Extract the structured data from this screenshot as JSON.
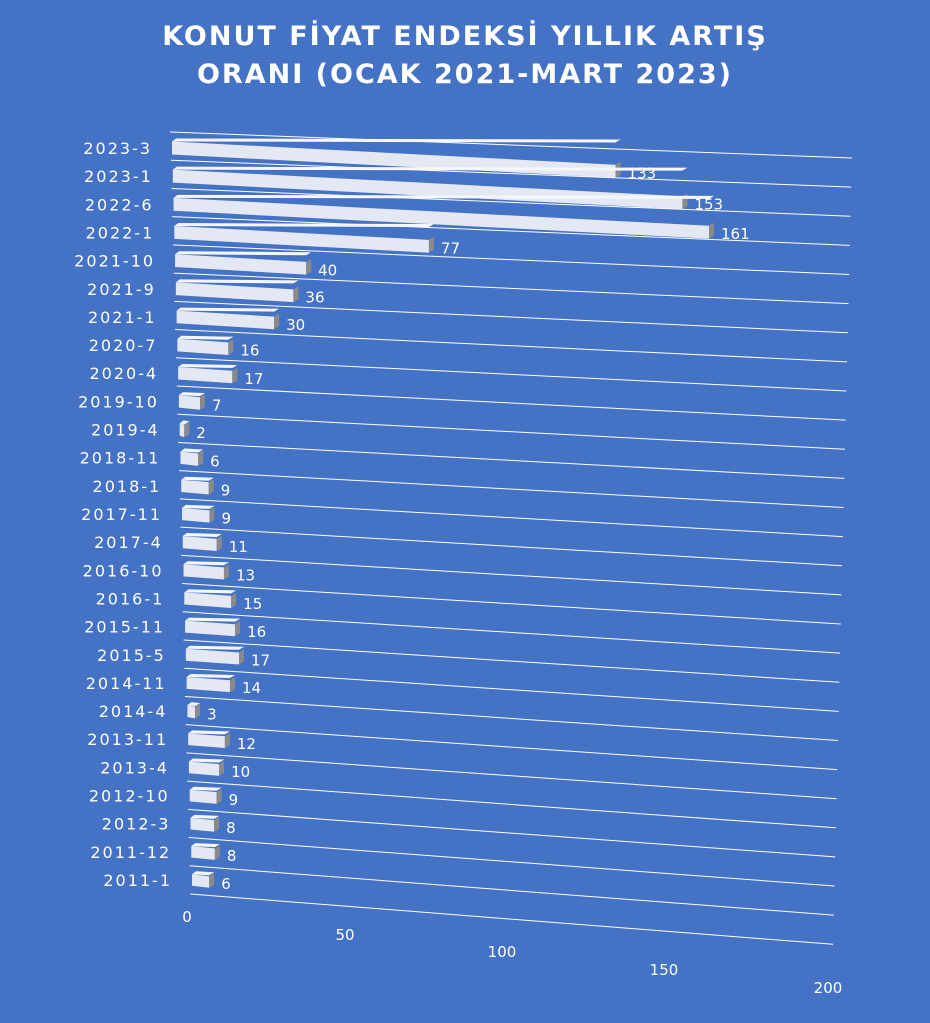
{
  "chart_data": {
    "type": "bar",
    "orientation": "horizontal",
    "title_line1": "KONUT FİYAT ENDEKSİ YILLIK ARTIŞ",
    "title_line2": "ORANI (OCAK 2021-MART 2023)",
    "categories": [
      "2023-3",
      "2023-1",
      "2022-6",
      "2022-1",
      "2021-10",
      "2021-9",
      "2021-1",
      "2020-7",
      "2020-4",
      "2019-10",
      "2019-4",
      "2018-11",
      "2018-1",
      "2017-11",
      "2017-4",
      "2016-10",
      "2016-1",
      "2015-11",
      "2015-5",
      "2014-11",
      "2014-4",
      "2013-11",
      "2013-4",
      "2012-10",
      "2012-3",
      "2011-12",
      "2011-1"
    ],
    "values": [
      133,
      153,
      161,
      77,
      40,
      36,
      30,
      16,
      17,
      7,
      2,
      6,
      9,
      9,
      11,
      13,
      15,
      16,
      17,
      14,
      3,
      12,
      10,
      9,
      8,
      8,
      6
    ],
    "x_ticks": [
      "0",
      "50",
      "100",
      "150",
      "200"
    ],
    "xlim": [
      0,
      200
    ],
    "grid": true,
    "legend": "none",
    "colors": {
      "background": "#4472C4",
      "bar": "#E4E8F3",
      "bar_side": "#8A8A8A",
      "text": "#FFFFFF",
      "grid": "#FFFFFF"
    }
  }
}
